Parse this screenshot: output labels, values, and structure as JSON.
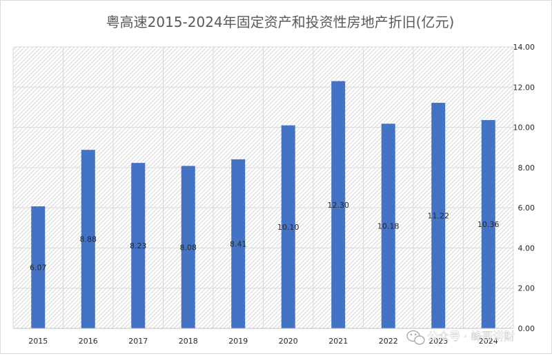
{
  "chart_data": {
    "type": "bar",
    "title": "粤高速2015-2024年固定资产和投资性房地产折旧(亿元)",
    "categories": [
      "2015",
      "2016",
      "2017",
      "2018",
      "2019",
      "2020",
      "2021",
      "2022",
      "2023",
      "2024"
    ],
    "values": [
      6.07,
      8.88,
      8.23,
      8.08,
      8.41,
      10.1,
      12.3,
      10.18,
      11.22,
      10.36
    ],
    "data_labels": [
      "6.07",
      "8.88",
      "8.23",
      "8.08",
      "8.41",
      "10.10",
      "12.30",
      "10.18",
      "11.22",
      "10.36"
    ],
    "y_ticks": [
      0,
      2,
      4,
      6,
      8,
      10,
      12,
      14
    ],
    "y_tick_labels": [
      "0.00",
      "2.00",
      "4.00",
      "6.00",
      "8.00",
      "10.00",
      "12.00",
      "14.00"
    ],
    "ylim": [
      0,
      14
    ],
    "y_axis_side": "right",
    "xlabel": "",
    "ylabel": "",
    "grid": true,
    "legend": "none",
    "bar_color": "#4472c4",
    "plot_background": "diagonal-hatch",
    "grid_color": "#d9d9d9"
  },
  "watermark": {
    "text": "公众号 · 峰哥讲财",
    "icon": "wechat-icon"
  }
}
